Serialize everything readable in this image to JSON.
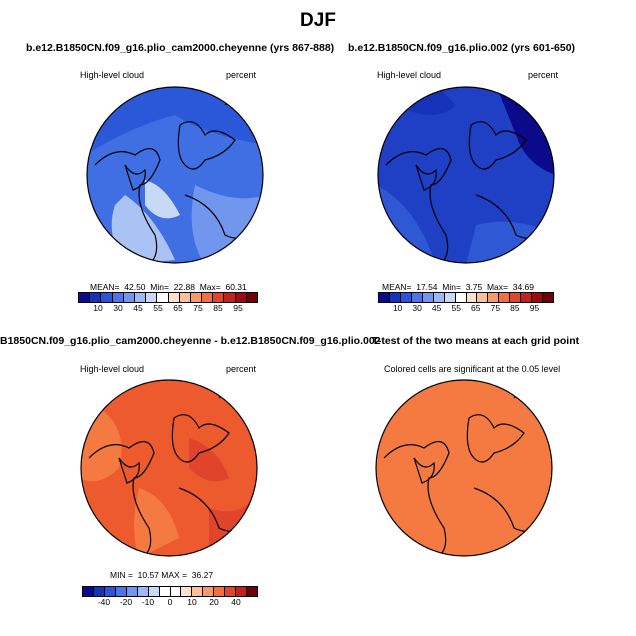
{
  "figure": {
    "title": "DJF"
  },
  "panels": [
    {
      "title": "b.e12.B1850CN.f09_g16.plio_cam2000.cheyenne (yrs 867-888)",
      "variable": "High-level cloud",
      "units": "percent",
      "stats": {
        "mean_label": "MEAN=",
        "mean": "42.50",
        "min_label": "Min=",
        "min": "22.88",
        "max_label": "Max=",
        "max": "60.31"
      },
      "colorbar_ticks": [
        "10",
        "30",
        "45",
        "55",
        "65",
        "75",
        "85",
        "95"
      ]
    },
    {
      "title": "b.e12.B1850CN.f09_g16.plio.002 (yrs 601-650)",
      "variable": "High-level cloud",
      "units": "percent",
      "stats": {
        "mean_label": "MEAN=",
        "mean": "17.54",
        "min_label": "Min=",
        "min": "3.75",
        "max_label": "Max=",
        "max": "34.69"
      },
      "colorbar_ticks": [
        "10",
        "30",
        "45",
        "55",
        "65",
        "75",
        "85",
        "95"
      ]
    },
    {
      "title": "B1850CN.f09_g16.plio_cam2000.cheyenne - b.e12.B1850CN.f09_g16.plio.002",
      "variable": "High-level cloud",
      "units": "percent",
      "stats": {
        "min_label": "MIN =",
        "min": "10.57",
        "max_label": "MAX =",
        "max": "36.27"
      },
      "colorbar_ticks": [
        "-40",
        "-20",
        "-10",
        "0",
        "10",
        "20",
        "40"
      ]
    },
    {
      "title": "T-test of the two means at each grid point",
      "note": "Colored cells are significant at the 0.05 level"
    }
  ],
  "colorbars": {
    "absolute": [
      "#0a0a8a",
      "#1433b8",
      "#2b55d6",
      "#4a76e6",
      "#7096ee",
      "#9db8f2",
      "#c8d8f7",
      "#ffffff",
      "#fde0cc",
      "#fbc09a",
      "#f89a68",
      "#f07040",
      "#e0442a",
      "#c2221c",
      "#9e0a12",
      "#700008"
    ],
    "difference": [
      "#0a0a8a",
      "#1433b8",
      "#2b55d6",
      "#4a76e6",
      "#7096ee",
      "#9db8f2",
      "#c8d8f7",
      "#ffffff",
      "#ffffff",
      "#fde0cc",
      "#fbc09a",
      "#f89a68",
      "#f07040",
      "#e0442a",
      "#c2221c",
      "#700008"
    ]
  },
  "map_fill_colors": {
    "panel1": "#3f6fe2",
    "panel2": "#1f3fc4",
    "panel3": "#ec5a2e",
    "panel4": "#f47a42"
  }
}
